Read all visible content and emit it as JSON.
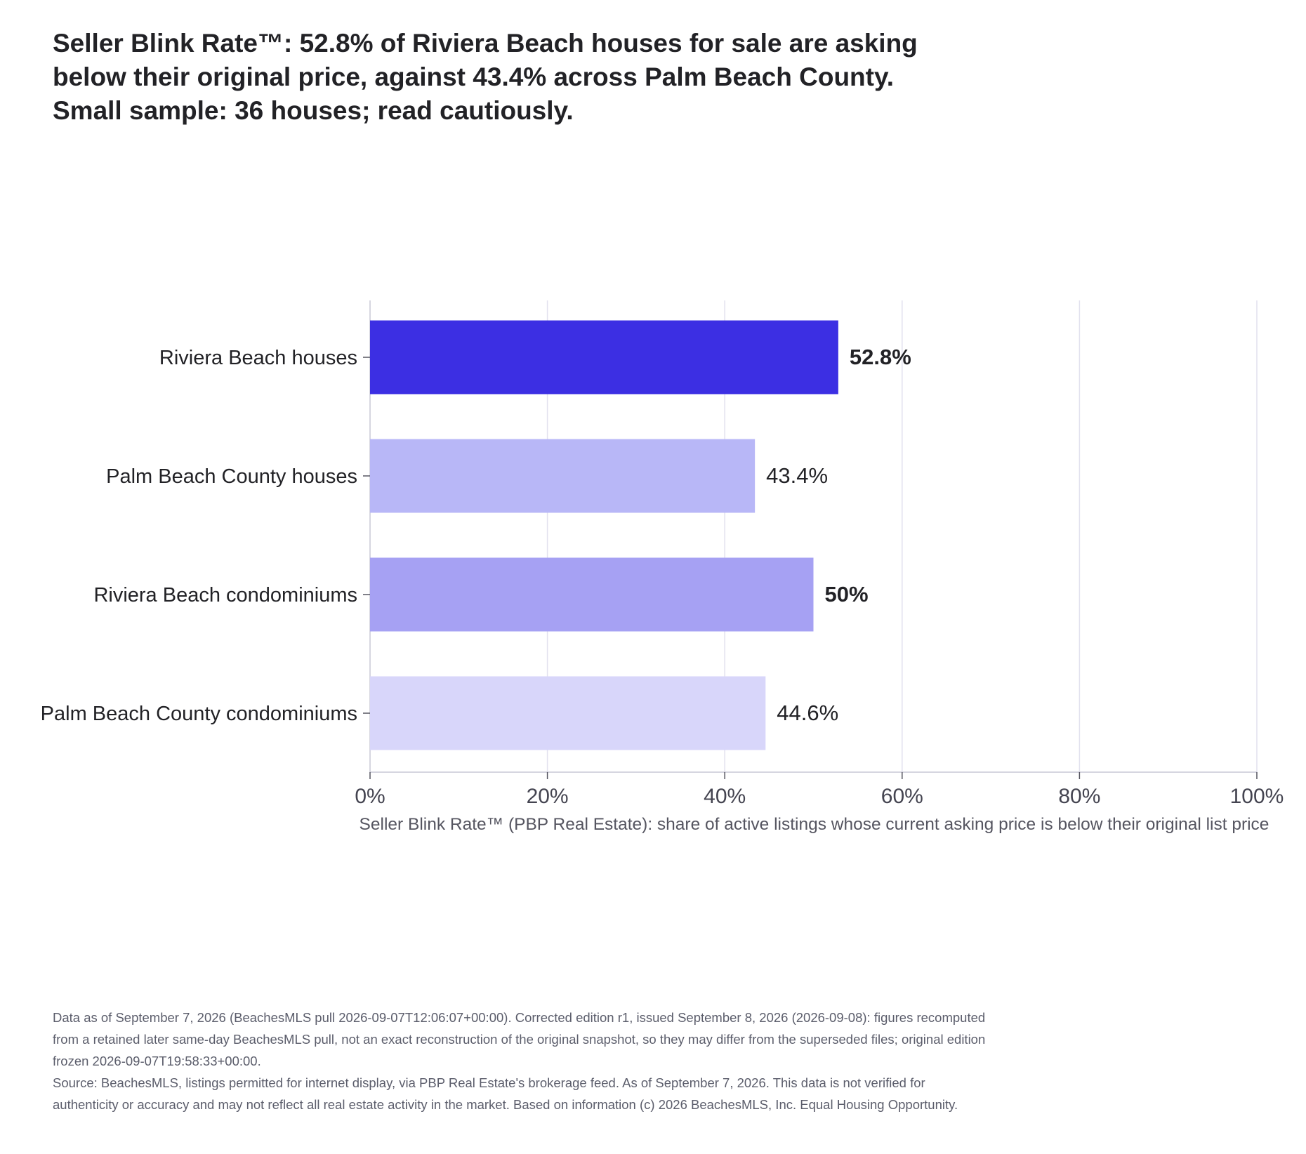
{
  "title": "Seller Blink Rate™: 52.8% of Riviera Beach houses for sale are asking below their original price, against 43.4% across Palm Beach County. Small sample: 36 houses; read cautiously.",
  "chart_data": {
    "type": "bar",
    "orientation": "horizontal",
    "categories": [
      "Riviera Beach houses",
      "Palm Beach County houses",
      "Riviera Beach condominiums",
      "Palm Beach County condominiums"
    ],
    "values": [
      52.8,
      43.4,
      50,
      44.6
    ],
    "data_labels": [
      "52.8%",
      "43.4%",
      "50%",
      "44.6%"
    ],
    "bold_labels": [
      true,
      false,
      true,
      false
    ],
    "bar_colors": [
      "#3c2fe3",
      "#b8b7f7",
      "#a6a1f3",
      "#d8d6fa"
    ],
    "xlabel": "Seller Blink Rate™ (PBP Real Estate): share of active listings whose current asking price is below their original list price",
    "xlim": [
      0,
      100
    ],
    "x_ticks": [
      0,
      20,
      40,
      60,
      80,
      100
    ],
    "x_tick_labels": [
      "0%",
      "20%",
      "40%",
      "60%",
      "80%",
      "100%"
    ],
    "grid": true,
    "gridline_color": "#e2e1ee",
    "axis_color": "#c9c8d6",
    "text_color": "#222226",
    "tick_label_color": "#444450"
  },
  "footer": {
    "note": "Data as of September 7, 2026 (BeachesMLS pull 2026-09-07T12:06:07+00:00). Corrected edition r1, issued September 8, 2026 (2026-09-08): figures recomputed from a retained later same-day BeachesMLS pull, not an exact reconstruction of the original snapshot, so they may differ from the superseded files; original edition frozen 2026-09-07T19:58:33+00:00.",
    "source": "Source: BeachesMLS, listings permitted for internet display, via PBP Real Estate's brokerage feed. As of September 7, 2026. This data is not verified for authenticity or accuracy and may not reflect all real estate activity in the market. Based on information (c) 2026 BeachesMLS, Inc. Equal Housing Opportunity."
  }
}
